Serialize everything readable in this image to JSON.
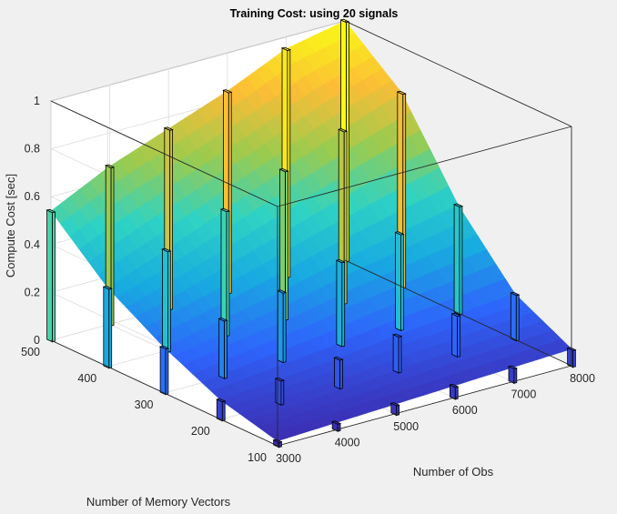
{
  "chart_data": {
    "type": "surface3d",
    "title": "Training Cost: using 20 signals",
    "xlabel": "Number of Obs",
    "ylabel": "Number of Memory Vectors",
    "zlabel": "Compute Cost [sec]",
    "x": [
      3000,
      4000,
      5000,
      6000,
      7000,
      8000
    ],
    "y": [
      100,
      200,
      300,
      400,
      500
    ],
    "xlim": [
      3000,
      8000
    ],
    "ylim": [
      100,
      500
    ],
    "zlim": [
      0,
      1
    ],
    "xticks": [
      "3000",
      "4000",
      "5000",
      "6000",
      "7000",
      "8000"
    ],
    "yticks": [
      "100",
      "200",
      "300",
      "400",
      "500"
    ],
    "zticks": [
      "0",
      "0.2",
      "0.4",
      "0.6",
      "0.8",
      "1"
    ],
    "values": [
      [
        0.02,
        0.03,
        0.04,
        0.05,
        0.06,
        0.07
      ],
      [
        0.08,
        0.1,
        0.12,
        0.15,
        0.17,
        0.19
      ],
      [
        0.19,
        0.24,
        0.29,
        0.35,
        0.4,
        0.45
      ],
      [
        0.33,
        0.42,
        0.52,
        0.62,
        0.72,
        0.81
      ],
      [
        0.54,
        0.66,
        0.75,
        0.84,
        0.95,
        1.0
      ]
    ],
    "colormap": [
      "#3e26a8",
      "#2e64fb",
      "#18abe0",
      "#2fd3c3",
      "#9bcb4e",
      "#fbbd36",
      "#f9fb15"
    ],
    "grid": true,
    "view": "3d-perspective"
  }
}
